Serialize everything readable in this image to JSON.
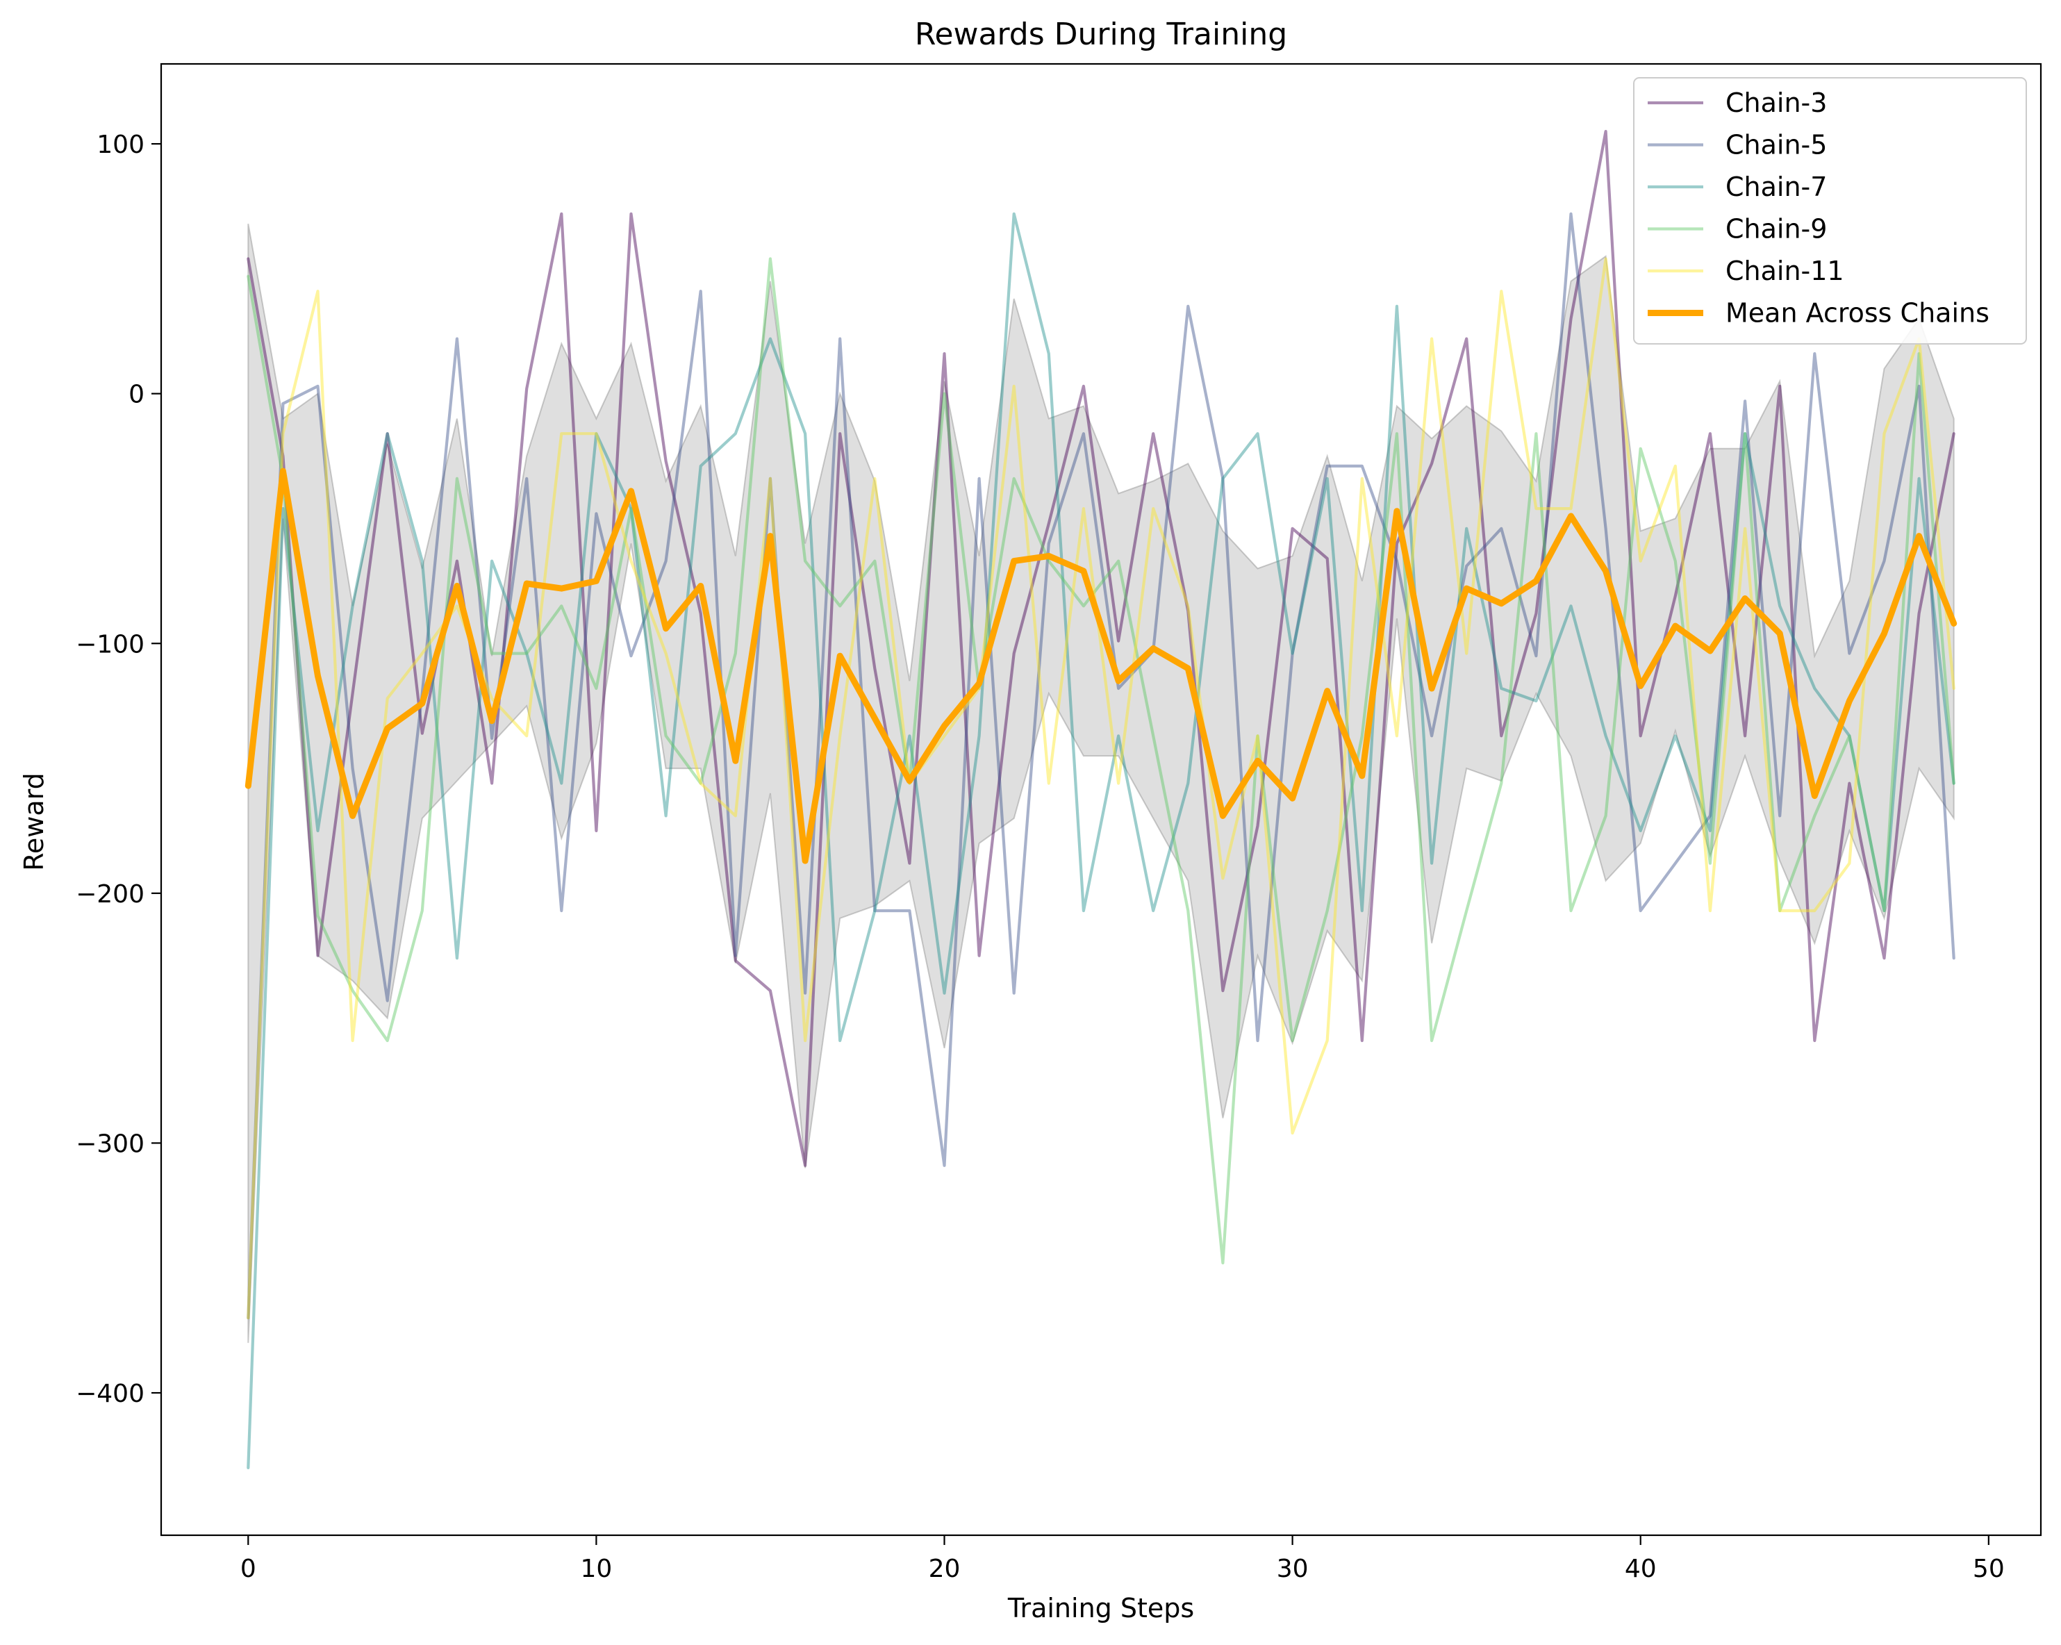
{
  "chart_data": {
    "type": "line",
    "title": "Rewards During Training",
    "xlabel": "Training Steps",
    "ylabel": "Reward",
    "xlim": [
      -2.5,
      51.5
    ],
    "ylim": [
      -457,
      132
    ],
    "xticks": [
      0,
      10,
      20,
      30,
      40,
      50
    ],
    "yticks": [
      100,
      0,
      -100,
      -200,
      -300,
      -400
    ],
    "ytick_labels": [
      "100",
      "0",
      "−100",
      "−200",
      "−300",
      "−400"
    ],
    "grid": false,
    "legend_position": "top-right",
    "x": [
      0,
      1,
      2,
      3,
      4,
      5,
      6,
      7,
      8,
      9,
      10,
      11,
      12,
      13,
      14,
      15,
      16,
      17,
      18,
      19,
      20,
      21,
      22,
      23,
      24,
      25,
      26,
      27,
      28,
      29,
      30,
      31,
      32,
      33,
      34,
      35,
      36,
      37,
      38,
      39,
      40,
      41,
      42,
      43,
      44,
      45,
      46,
      47,
      48,
      49
    ],
    "series": [
      {
        "name": "Chain-3",
        "color": "#440154",
        "alpha": 0.45,
        "values": [
          54,
          -25,
          -225,
          -120,
          -16,
          -136,
          -67,
          -156,
          2,
          72,
          -175,
          72,
          -27,
          -88,
          -227,
          -239,
          -309,
          -16,
          -110,
          -188,
          16,
          -225,
          -104,
          -52,
          3,
          -99,
          -16,
          -87,
          -239,
          -173,
          -54,
          -66,
          -259,
          -60,
          -28,
          22,
          -137,
          -88,
          30,
          105,
          -137,
          -81,
          -16,
          -137,
          3,
          -259,
          -156,
          -226,
          -88,
          -16
        ]
      },
      {
        "name": "Chain-5",
        "color": "#3b528b",
        "alpha": 0.45,
        "values": [
          -370,
          -4,
          3,
          -150,
          -243,
          -120,
          22,
          -138,
          -34,
          -207,
          -48,
          -105,
          -67,
          41,
          -225,
          -34,
          -240,
          22,
          -207,
          -207,
          -309,
          -34,
          -240,
          -60,
          -16,
          -118,
          -103,
          35,
          -34,
          -259,
          -104,
          -29,
          -29,
          -67,
          -137,
          -69,
          -54,
          -105,
          72,
          -54,
          -207,
          -188,
          -169,
          -3,
          -169,
          16,
          -104,
          -67,
          3,
          -226
        ]
      },
      {
        "name": "Chain-7",
        "color": "#21908d",
        "alpha": 0.45,
        "values": [
          -430,
          -46,
          -175,
          -85,
          -16,
          -67,
          -226,
          -67,
          -104,
          -156,
          -16,
          -46,
          -169,
          -29,
          -16,
          22,
          -16,
          -259,
          -207,
          -137,
          -240,
          -137,
          72,
          16,
          -207,
          -137,
          -207,
          -156,
          -34,
          -16,
          -104,
          -34,
          -207,
          35,
          -188,
          -54,
          -118,
          -123,
          -85,
          -137,
          -175,
          -137,
          -175,
          -16,
          -85,
          -118,
          -137,
          -207,
          -34,
          -156
        ]
      },
      {
        "name": "Chain-9",
        "color": "#5dc863",
        "alpha": 0.45,
        "values": [
          47,
          -34,
          -209,
          -239,
          -259,
          -207,
          -34,
          -104,
          -104,
          -85,
          -118,
          -46,
          -137,
          -156,
          -104,
          54,
          -67,
          -85,
          -67,
          -156,
          0,
          -118,
          -34,
          -67,
          -85,
          -67,
          -137,
          -207,
          -348,
          -137,
          -259,
          -207,
          -137,
          -16,
          -259,
          -207,
          -156,
          -16,
          -207,
          -169,
          -22,
          -67,
          -188,
          -16,
          -207,
          -169,
          -137,
          -207,
          16,
          -156
        ]
      },
      {
        "name": "Chain-11",
        "color": "#fde725",
        "alpha": 0.45,
        "values": [
          -370,
          -16,
          41,
          -259,
          -122,
          -104,
          -85,
          -122,
          -137,
          -16,
          -16,
          -67,
          -104,
          -156,
          -169,
          -34,
          -259,
          -137,
          -34,
          -156,
          -137,
          -118,
          3,
          -156,
          -46,
          -156,
          -46,
          -85,
          -194,
          -137,
          -296,
          -259,
          -34,
          -137,
          22,
          -104,
          41,
          -46,
          -46,
          54,
          -67,
          -29,
          -207,
          -54,
          -207,
          -207,
          -188,
          -16,
          22,
          -118
        ]
      },
      {
        "name": "Mean Across Chains",
        "color": "#ffa500",
        "alpha": 1,
        "values": [
          -157,
          -31,
          -113,
          -169,
          -134,
          -124,
          -77,
          -131,
          -76,
          -78,
          -75,
          -39,
          -94,
          -77,
          -147,
          -57,
          -187,
          -105,
          -130,
          -155,
          -133,
          -116,
          -67,
          -65,
          -71,
          -115,
          -102,
          -110,
          -169,
          -147,
          -162,
          -119,
          -153,
          -47,
          -118,
          -78,
          -84,
          -75,
          -49,
          -71,
          -117,
          -93,
          -103,
          -82,
          -96,
          -161,
          -123,
          -96,
          -57,
          -92
        ]
      }
    ],
    "band": {
      "color": "#808080",
      "alpha": 0.25,
      "upper": [
        68,
        -10,
        0,
        -85,
        -20,
        -70,
        -10,
        -105,
        -25,
        20,
        -10,
        20,
        -35,
        -5,
        -65,
        45,
        -60,
        0,
        -35,
        -115,
        5,
        -65,
        38,
        -10,
        -5,
        -40,
        -35,
        -28,
        -55,
        -70,
        -65,
        -25,
        -75,
        -5,
        -18,
        -5,
        -15,
        -35,
        45,
        55,
        -55,
        -50,
        -22,
        -22,
        5,
        -105,
        -75,
        10,
        30,
        -10
      ],
      "lower": [
        -380,
        -50,
        -225,
        -235,
        -250,
        -170,
        -155,
        -140,
        -125,
        -178,
        -140,
        -60,
        -150,
        -150,
        -228,
        -160,
        -310,
        -210,
        -205,
        -195,
        -262,
        -180,
        -170,
        -120,
        -145,
        -145,
        -170,
        -195,
        -290,
        -225,
        -260,
        -215,
        -235,
        -90,
        -220,
        -150,
        -155,
        -120,
        -145,
        -195,
        -180,
        -135,
        -185,
        -145,
        -187,
        -220,
        -175,
        -210,
        -150,
        -170
      ]
    }
  }
}
